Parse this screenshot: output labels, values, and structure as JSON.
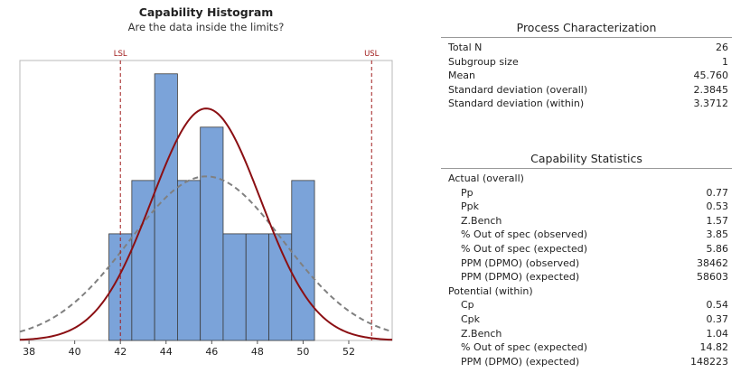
{
  "chart_data": {
    "type": "histogram",
    "title": "Capability Histogram",
    "subtitle": "Are the data inside the limits?",
    "x_ticks": [
      38,
      40,
      42,
      44,
      46,
      48,
      50,
      52
    ],
    "xlim": [
      37.6,
      53.9
    ],
    "ylim": [
      0,
      5.25
    ],
    "bin_width": 1,
    "bins": [
      {
        "start": 41.5,
        "count": 2
      },
      {
        "start": 42.5,
        "count": 3
      },
      {
        "start": 43.5,
        "count": 5
      },
      {
        "start": 44.5,
        "count": 3
      },
      {
        "start": 45.5,
        "count": 4
      },
      {
        "start": 46.5,
        "count": 2
      },
      {
        "start": 47.5,
        "count": 2
      },
      {
        "start": 48.5,
        "count": 2
      },
      {
        "start": 49.5,
        "count": 3
      }
    ],
    "lsl": {
      "label": "LSL",
      "value": 42
    },
    "usl": {
      "label": "USL",
      "value": 53
    },
    "n": 26,
    "mean": 45.76,
    "stdev_overall": 2.3845,
    "stdev_within": 3.3712,
    "colors": {
      "bar": "#7ba3d9",
      "bar_edge": "#3a3a3a",
      "spec": "#a01b1b",
      "overall_curve": "#8b0f13",
      "within_curve": "#808080"
    }
  },
  "process": {
    "title": "Process Characterization",
    "rows": [
      {
        "label": "Total N",
        "value": "26"
      },
      {
        "label": "Subgroup size",
        "value": "1"
      },
      {
        "label": "Mean",
        "value": "45.760"
      },
      {
        "label": "Standard deviation (overall)",
        "value": "2.3845"
      },
      {
        "label": "Standard deviation (within)",
        "value": "3.3712"
      }
    ]
  },
  "capability": {
    "title": "Capability Statistics",
    "rows": [
      {
        "label": "Actual (overall)",
        "value": "",
        "indent": false
      },
      {
        "label": "Pp",
        "value": "0.77",
        "indent": true
      },
      {
        "label": "Ppk",
        "value": "0.53",
        "indent": true
      },
      {
        "label": "Z.Bench",
        "value": "1.57",
        "indent": true
      },
      {
        "label": "% Out of spec (observed)",
        "value": "3.85",
        "indent": true
      },
      {
        "label": "% Out of spec (expected)",
        "value": "5.86",
        "indent": true
      },
      {
        "label": "PPM (DPMO) (observed)",
        "value": "38462",
        "indent": true
      },
      {
        "label": "PPM (DPMO) (expected)",
        "value": "58603",
        "indent": true
      },
      {
        "label": "Potential (within)",
        "value": "",
        "indent": false
      },
      {
        "label": "Cp",
        "value": "0.54",
        "indent": true
      },
      {
        "label": "Cpk",
        "value": "0.37",
        "indent": true
      },
      {
        "label": "Z.Bench",
        "value": "1.04",
        "indent": true
      },
      {
        "label": "% Out of spec (expected)",
        "value": "14.82",
        "indent": true
      },
      {
        "label": "PPM (DPMO) (expected)",
        "value": "148223",
        "indent": true
      }
    ]
  }
}
